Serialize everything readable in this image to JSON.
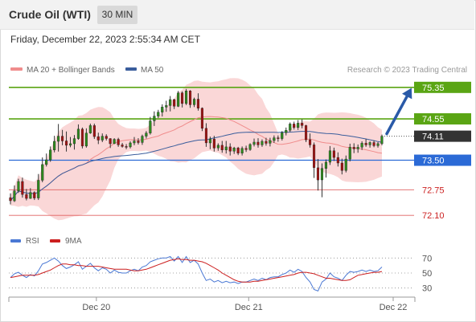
{
  "header": {
    "instrument": "Crude Oil (WTI)",
    "timeframe": "30 MIN",
    "datetime": "Friday, December 22, 2023 2:55:34 AM CET"
  },
  "legend": {
    "ma20_bollinger": "MA 20 + Bollinger Bands",
    "ma50": "MA 50",
    "credit": "Research © 2023 Trading Central",
    "ma20_color": "#f08c8c",
    "ma50_color": "#3a5d9c"
  },
  "chart_data": [
    {
      "type": "candlestick",
      "price_range": [
        71.9,
        75.55
      ],
      "x_ticks": [
        "Dec 20",
        "Dec 21",
        "Dec 22"
      ],
      "levels": [
        {
          "label": "75.35",
          "value": 75.35,
          "kind": "resistance",
          "color": "#5aa514"
        },
        {
          "label": "74.55",
          "value": 74.55,
          "kind": "resistance",
          "color": "#5aa514"
        },
        {
          "label": "74.11",
          "value": 74.11,
          "kind": "last",
          "color": "#333333"
        },
        {
          "label": "73.50",
          "value": 73.5,
          "kind": "pivot",
          "color": "#2b6ad6"
        },
        {
          "label": "72.75",
          "value": 72.75,
          "kind": "support",
          "color": "#e06060"
        },
        {
          "label": "72.10",
          "value": 72.1,
          "kind": "support",
          "color": "#e06060"
        }
      ],
      "target_arrow": {
        "from": 74.11,
        "to": 75.35,
        "color": "#2a5aa8"
      },
      "candles": [
        [
          72.55,
          72.66,
          72.38,
          72.47
        ],
        [
          72.47,
          72.86,
          72.44,
          72.72
        ],
        [
          72.72,
          73.03,
          72.67,
          72.96
        ],
        [
          72.96,
          73.06,
          72.55,
          72.63
        ],
        [
          72.63,
          72.77,
          72.48,
          72.53
        ],
        [
          72.53,
          72.79,
          72.52,
          72.68
        ],
        [
          72.68,
          72.71,
          72.49,
          72.54
        ],
        [
          72.54,
          73.15,
          72.49,
          72.99
        ],
        [
          72.99,
          73.57,
          72.94,
          73.39
        ],
        [
          73.39,
          73.67,
          73.34,
          73.51
        ],
        [
          73.51,
          73.85,
          73.46,
          73.76
        ],
        [
          73.76,
          74.12,
          73.7,
          73.98
        ],
        [
          73.98,
          74.42,
          73.72,
          74.11
        ],
        [
          74.11,
          74.27,
          73.88,
          73.99
        ],
        [
          73.99,
          74.23,
          73.72,
          73.88
        ],
        [
          73.88,
          74.09,
          73.83,
          73.92
        ],
        [
          73.92,
          74.14,
          73.77,
          74.05
        ],
        [
          74.05,
          74.41,
          74.02,
          74.29
        ],
        [
          74.29,
          74.33,
          73.8,
          73.86
        ],
        [
          73.86,
          74.31,
          73.82,
          74.19
        ],
        [
          74.19,
          74.43,
          74.17,
          74.38
        ],
        [
          74.38,
          74.43,
          74.04,
          74.1
        ],
        [
          74.1,
          74.2,
          73.91,
          74.01
        ],
        [
          74.01,
          74.18,
          73.96,
          74.11
        ],
        [
          74.11,
          74.16,
          74.0,
          74.05
        ],
        [
          74.05,
          74.06,
          73.81,
          73.92
        ],
        [
          73.92,
          74.06,
          73.91,
          74.03
        ],
        [
          74.03,
          74.07,
          73.84,
          73.89
        ],
        [
          73.89,
          73.94,
          73.82,
          73.85
        ],
        [
          73.85,
          73.91,
          73.78,
          73.84
        ],
        [
          73.84,
          73.98,
          73.8,
          73.94
        ],
        [
          73.94,
          74.09,
          73.88,
          73.99
        ],
        [
          73.99,
          74.06,
          73.9,
          73.95
        ],
        [
          73.95,
          74.15,
          73.89,
          74.11
        ],
        [
          74.11,
          74.24,
          74.05,
          74.19
        ],
        [
          74.19,
          74.6,
          74.15,
          74.5
        ],
        [
          74.5,
          74.74,
          74.37,
          74.62
        ],
        [
          74.62,
          74.78,
          74.57,
          74.72
        ],
        [
          74.72,
          74.92,
          74.61,
          74.85
        ],
        [
          74.85,
          75.01,
          74.73,
          74.89
        ],
        [
          74.89,
          75.13,
          74.74,
          75.04
        ],
        [
          75.04,
          75.06,
          74.8,
          74.87
        ],
        [
          74.87,
          75.26,
          74.85,
          75.21
        ],
        [
          75.21,
          75.25,
          74.84,
          74.94
        ],
        [
          74.94,
          75.31,
          74.9,
          75.26
        ],
        [
          75.26,
          75.28,
          74.83,
          74.91
        ],
        [
          74.91,
          75.09,
          74.85,
          75.05
        ],
        [
          75.05,
          75.2,
          74.76,
          74.82
        ],
        [
          74.82,
          74.84,
          74.24,
          74.31
        ],
        [
          74.31,
          74.44,
          73.84,
          73.94
        ],
        [
          73.94,
          74.1,
          73.78,
          74.04
        ],
        [
          74.04,
          74.12,
          73.72,
          73.81
        ],
        [
          73.81,
          73.93,
          73.74,
          73.88
        ],
        [
          73.88,
          73.99,
          73.69,
          73.76
        ],
        [
          73.76,
          73.99,
          73.67,
          73.84
        ],
        [
          73.84,
          73.93,
          73.62,
          73.73
        ],
        [
          73.73,
          73.84,
          73.66,
          73.81
        ],
        [
          73.81,
          73.84,
          73.63,
          73.68
        ],
        [
          73.68,
          73.85,
          73.62,
          73.8
        ],
        [
          73.8,
          73.87,
          73.71,
          73.77
        ],
        [
          73.77,
          73.93,
          73.74,
          73.9
        ],
        [
          73.9,
          74.05,
          73.85,
          73.96
        ],
        [
          73.96,
          74.06,
          73.82,
          73.89
        ],
        [
          73.89,
          74.03,
          73.84,
          73.98
        ],
        [
          73.98,
          74.07,
          73.87,
          73.93
        ],
        [
          73.93,
          74.07,
          73.85,
          74.0
        ],
        [
          74.0,
          74.13,
          73.94,
          74.07
        ],
        [
          74.07,
          74.13,
          73.97,
          74.05
        ],
        [
          74.05,
          74.24,
          74.0,
          74.2
        ],
        [
          74.2,
          74.33,
          74.13,
          74.26
        ],
        [
          74.26,
          74.46,
          74.22,
          74.42
        ],
        [
          74.42,
          74.48,
          74.28,
          74.33
        ],
        [
          74.33,
          74.52,
          74.27,
          74.44
        ],
        [
          74.44,
          74.54,
          74.31,
          74.38
        ],
        [
          74.38,
          74.4,
          73.96,
          74.02
        ],
        [
          74.02,
          74.18,
          73.82,
          73.89
        ],
        [
          73.89,
          73.95,
          73.05,
          73.31
        ],
        [
          73.31,
          73.53,
          72.73,
          73.0
        ],
        [
          73.0,
          73.42,
          72.56,
          73.29
        ],
        [
          73.29,
          73.52,
          73.06,
          73.45
        ],
        [
          73.45,
          73.86,
          73.38,
          73.74
        ],
        [
          73.74,
          73.82,
          73.48,
          73.57
        ],
        [
          73.57,
          73.7,
          73.34,
          73.43
        ],
        [
          73.43,
          73.54,
          73.14,
          73.24
        ],
        [
          73.24,
          73.62,
          73.19,
          73.53
        ],
        [
          73.53,
          73.92,
          73.47,
          73.83
        ],
        [
          73.83,
          73.93,
          73.68,
          73.79
        ],
        [
          73.79,
          73.9,
          73.69,
          73.83
        ],
        [
          73.83,
          73.98,
          73.76,
          73.93
        ],
        [
          73.93,
          74.04,
          73.84,
          73.89
        ],
        [
          73.89,
          73.98,
          73.82,
          73.95
        ],
        [
          73.95,
          74.0,
          73.83,
          73.87
        ],
        [
          73.87,
          73.96,
          73.82,
          73.92
        ],
        [
          73.92,
          74.15,
          73.88,
          74.11
        ]
      ]
    },
    {
      "type": "line",
      "title": "",
      "series_labels": [
        "RSI",
        "9MA"
      ],
      "series_colors": [
        "#4a78d4",
        "#cc1f1f"
      ],
      "y_ticks": [
        70,
        50,
        30
      ],
      "ylim": [
        20,
        80
      ],
      "rsi": [
        44,
        49,
        51,
        47,
        44,
        48,
        46,
        53,
        62,
        64,
        67,
        70,
        66,
        60,
        56,
        58,
        61,
        65,
        55,
        59,
        63,
        57,
        53,
        57,
        55,
        50,
        54,
        51,
        50,
        50,
        53,
        55,
        53,
        58,
        60,
        65,
        67,
        69,
        70,
        70,
        72,
        66,
        72,
        64,
        72,
        64,
        67,
        62,
        50,
        40,
        42,
        38,
        40,
        37,
        39,
        37,
        38,
        36,
        38,
        38,
        40,
        42,
        40,
        43,
        41,
        44,
        45,
        45,
        48,
        50,
        54,
        51,
        55,
        52,
        44,
        38,
        28,
        26,
        38,
        42,
        50,
        45,
        43,
        40,
        47,
        52,
        51,
        52,
        54,
        52,
        54,
        52,
        53,
        58
      ],
      "ma9": [
        44,
        45,
        46,
        47,
        47,
        47,
        47,
        48,
        50,
        52,
        54,
        57,
        60,
        62,
        62,
        61,
        61,
        60,
        60,
        59,
        59,
        59,
        59,
        58,
        57,
        56,
        55,
        55,
        55,
        55,
        54,
        53,
        53,
        54,
        55,
        57,
        59,
        61,
        63,
        65,
        67,
        68,
        69,
        68,
        68,
        67,
        67,
        66,
        65,
        63,
        60,
        57,
        54,
        50,
        47,
        44,
        41,
        39,
        38,
        38,
        38,
        39,
        39,
        40,
        41,
        42,
        43,
        44,
        45,
        46,
        47,
        48,
        50,
        51,
        51,
        50,
        49,
        47,
        45,
        43,
        43,
        42,
        41,
        40,
        40,
        41,
        44,
        47,
        48,
        49,
        50,
        51,
        51,
        52
      ]
    }
  ]
}
